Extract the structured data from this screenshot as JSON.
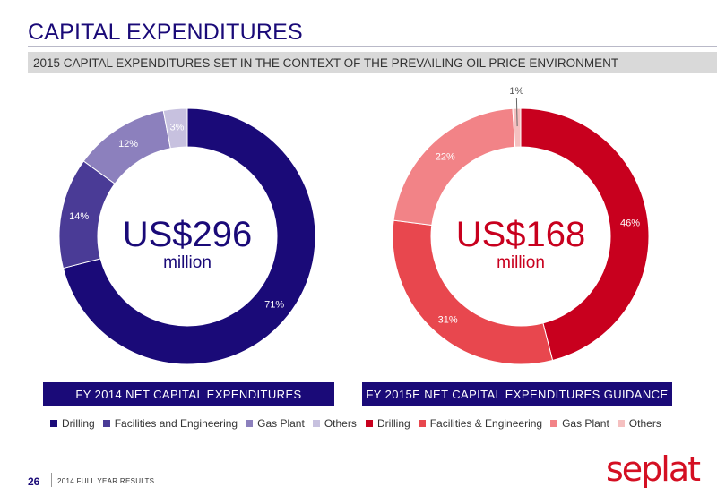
{
  "page": {
    "title": "CAPITAL EXPENDITURES",
    "subtitle": "2015 CAPITAL EXPENDITURES SET IN THE CONTEXT OF THE PREVAILING OIL PRICE ENVIRONMENT",
    "page_number": "26",
    "footer_text": "2014 FULL YEAR RESULTS",
    "logo_text": "seplat"
  },
  "chart_data": [
    {
      "type": "pie",
      "title": "FY 2014 NET CAPITAL EXPENDITURES",
      "center_amount": "US$296",
      "center_unit": "million",
      "categories": [
        "Drilling",
        "Facilities and Engineering",
        "Gas Plant",
        "Others"
      ],
      "values": [
        71,
        14,
        12,
        3
      ],
      "labels": [
        "71%",
        "14%",
        "12%",
        "3%"
      ],
      "colors": [
        "#1a0a78",
        "#4a3b96",
        "#8c80bd",
        "#c7c1df"
      ],
      "center_color": "#1a0a78",
      "legend": "bottom"
    },
    {
      "type": "pie",
      "title": "FY 2015E NET CAPITAL EXPENDITURES GUIDANCE",
      "center_amount": "US$168",
      "center_unit": "million",
      "categories": [
        "Drilling",
        "Facilities & Engineering",
        "Gas Plant",
        "Others"
      ],
      "values": [
        46,
        31,
        22,
        1
      ],
      "labels": [
        "46%",
        "31%",
        "22%",
        "1%"
      ],
      "colors": [
        "#c8001e",
        "#e8474e",
        "#f28387",
        "#f5c0c0"
      ],
      "center_color": "#c8001e",
      "legend": "bottom"
    }
  ]
}
